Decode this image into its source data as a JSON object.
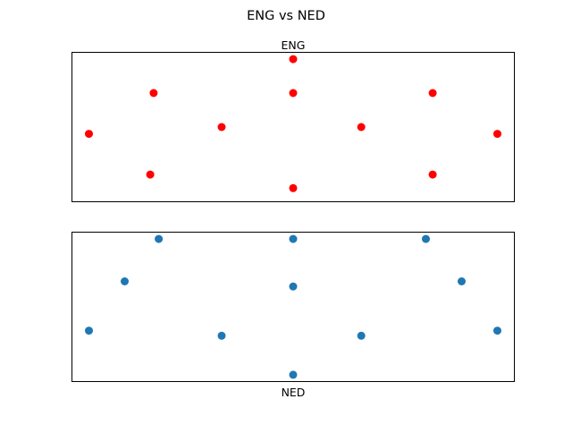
{
  "figure": {
    "suptitle": "ENG vs NED"
  },
  "chart_data": [
    {
      "type": "scatter",
      "title": "ENG",
      "xlabel": "",
      "ylabel": "",
      "grid": false,
      "ticks": false,
      "xlim": [
        -0.5,
        12.5
      ],
      "ylim": [
        -0.2,
        4.2
      ],
      "series": [
        {
          "color": "#ff0000",
          "x": [
            0,
            1.9,
            1.8,
            3.9,
            6,
            6,
            6,
            8,
            10.1,
            10.1,
            12
          ],
          "y": [
            1.8,
            3.0,
            0.6,
            2.0,
            4.0,
            3.0,
            0.2,
            2.0,
            3.0,
            0.6,
            1.8
          ]
        }
      ]
    },
    {
      "type": "scatter",
      "title": "",
      "xlabel": "NED",
      "ylabel": "",
      "grid": false,
      "ticks": false,
      "xlim": [
        -0.5,
        12.5
      ],
      "ylim": [
        -0.2,
        4.2
      ],
      "series": [
        {
          "color": "#1f77b4",
          "x": [
            0,
            1.05,
            2.05,
            3.9,
            6,
            6,
            6,
            8,
            9.9,
            10.95,
            12
          ],
          "y": [
            1.3,
            2.75,
            4.0,
            1.15,
            4.0,
            2.6,
            0.0,
            1.15,
            4.0,
            2.75,
            1.3
          ]
        }
      ]
    }
  ]
}
